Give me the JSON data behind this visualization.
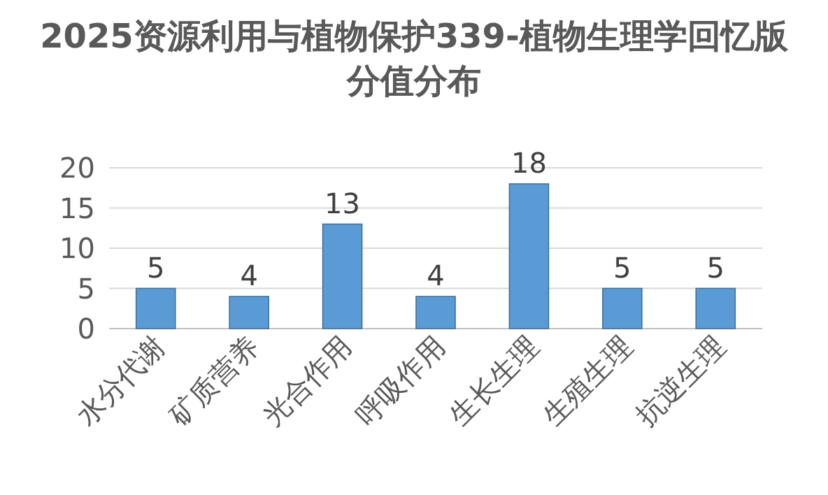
{
  "chart_data": {
    "type": "bar",
    "title": "2025资源利用与植物保护339-植物生理学回忆版分值分布",
    "categories": [
      "水分代谢",
      "矿质营养",
      "光合作用",
      "呼吸作用",
      "生长生理",
      "生殖生理",
      "抗逆生理"
    ],
    "values": [
      5,
      4,
      13,
      4,
      18,
      5,
      5
    ],
    "color": "#5b9bd5",
    "ylim": [
      0,
      20
    ],
    "yticks": [
      0,
      5,
      10,
      15,
      20
    ],
    "grid": "y",
    "data_labels": true
  }
}
